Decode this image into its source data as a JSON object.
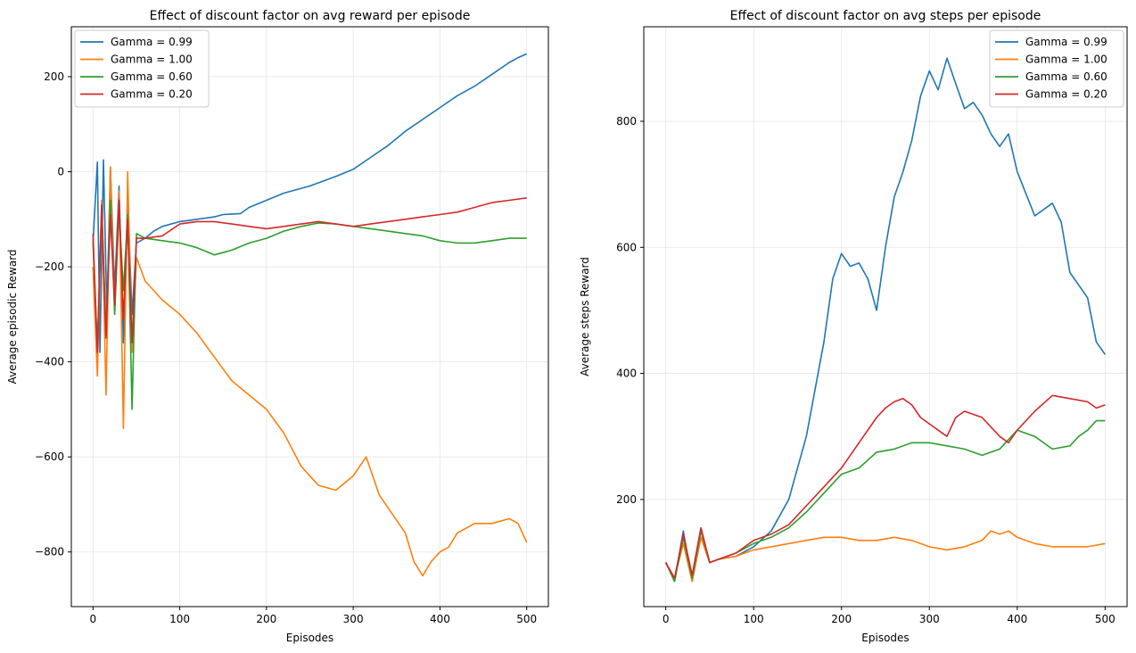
{
  "chart_data": [
    {
      "type": "line",
      "title": "Effect of discount factor on avg reward per episode",
      "xlabel": "Episodes",
      "ylabel": "Average episodic Reward",
      "xlim": [
        -25,
        525
      ],
      "ylim": [
        -915,
        305
      ],
      "xticks": [
        0,
        100,
        200,
        300,
        400,
        500
      ],
      "yticks": [
        -800,
        -600,
        -400,
        -200,
        0,
        200
      ],
      "grid": true,
      "legend": "upper left",
      "series": [
        {
          "name": "Gamma = 0.99",
          "color": "#1f77b4",
          "x": [
            0,
            5,
            8,
            12,
            16,
            20,
            25,
            30,
            35,
            40,
            45,
            50,
            60,
            70,
            80,
            100,
            120,
            140,
            150,
            170,
            180,
            200,
            220,
            250,
            280,
            300,
            320,
            340,
            350,
            360,
            380,
            400,
            420,
            440,
            460,
            480,
            490,
            500
          ],
          "y": [
            -150,
            20,
            -380,
            25,
            -300,
            10,
            -250,
            -30,
            -360,
            -60,
            -300,
            -150,
            -140,
            -125,
            -115,
            -105,
            -100,
            -95,
            -90,
            -88,
            -75,
            -60,
            -45,
            -30,
            -10,
            5,
            30,
            55,
            70,
            85,
            110,
            135,
            160,
            180,
            205,
            230,
            240,
            248
          ]
        },
        {
          "name": "Gamma = 1.00",
          "color": "#ff7f0e",
          "x": [
            0,
            5,
            10,
            15,
            20,
            25,
            30,
            35,
            40,
            45,
            50,
            60,
            80,
            100,
            120,
            140,
            160,
            180,
            200,
            220,
            240,
            260,
            280,
            300,
            315,
            330,
            345,
            360,
            370,
            380,
            390,
            400,
            410,
            420,
            440,
            460,
            480,
            490,
            500
          ],
          "y": [
            -200,
            -430,
            -60,
            -470,
            10,
            -300,
            -40,
            -540,
            0,
            -380,
            -180,
            -230,
            -270,
            -300,
            -340,
            -390,
            -440,
            -470,
            -500,
            -550,
            -620,
            -660,
            -670,
            -640,
            -600,
            -680,
            -720,
            -760,
            -820,
            -850,
            -820,
            -800,
            -790,
            -760,
            -740,
            -740,
            -730,
            -740,
            -780
          ]
        },
        {
          "name": "Gamma = 0.60",
          "color": "#2ca02c",
          "x": [
            0,
            5,
            10,
            15,
            20,
            25,
            30,
            35,
            40,
            45,
            50,
            60,
            80,
            100,
            120,
            140,
            160,
            180,
            200,
            220,
            240,
            260,
            280,
            300,
            320,
            340,
            360,
            380,
            400,
            420,
            440,
            460,
            480,
            500
          ],
          "y": [
            -150,
            -370,
            -70,
            -340,
            -60,
            -300,
            -80,
            -250,
            -90,
            -500,
            -130,
            -140,
            -145,
            -150,
            -160,
            -175,
            -165,
            -150,
            -140,
            -125,
            -115,
            -108,
            -110,
            -115,
            -120,
            -125,
            -130,
            -135,
            -145,
            -150,
            -150,
            -145,
            -140,
            -140
          ]
        },
        {
          "name": "Gamma = 0.20",
          "color": "#d62728",
          "x": [
            0,
            5,
            10,
            15,
            20,
            25,
            30,
            35,
            40,
            45,
            50,
            60,
            80,
            100,
            120,
            140,
            160,
            180,
            200,
            220,
            240,
            260,
            280,
            300,
            320,
            340,
            360,
            380,
            400,
            420,
            440,
            460,
            480,
            500
          ],
          "y": [
            -130,
            -380,
            -70,
            -350,
            -90,
            -280,
            -60,
            -310,
            -100,
            -360,
            -140,
            -140,
            -135,
            -110,
            -105,
            -105,
            -110,
            -115,
            -120,
            -115,
            -110,
            -105,
            -110,
            -115,
            -110,
            -105,
            -100,
            -95,
            -90,
            -85,
            -75,
            -65,
            -60,
            -55
          ]
        }
      ]
    },
    {
      "type": "line",
      "title": "Effect of discount factor on avg steps per episode",
      "xlabel": "Episodes",
      "ylabel": "Average steps Reward",
      "xlim": [
        -25,
        525
      ],
      "ylim": [
        30,
        950
      ],
      "xticks": [
        0,
        100,
        200,
        300,
        400,
        500
      ],
      "yticks": [
        200,
        400,
        600,
        800
      ],
      "grid": true,
      "legend": "upper right",
      "series": [
        {
          "name": "Gamma = 0.99",
          "color": "#1f77b4",
          "x": [
            0,
            10,
            20,
            30,
            40,
            50,
            60,
            80,
            100,
            120,
            140,
            160,
            180,
            190,
            200,
            210,
            220,
            230,
            240,
            250,
            260,
            270,
            280,
            290,
            300,
            310,
            320,
            330,
            340,
            350,
            360,
            370,
            380,
            390,
            400,
            420,
            440,
            450,
            460,
            480,
            490,
            500
          ],
          "y": [
            100,
            70,
            150,
            70,
            140,
            100,
            105,
            110,
            125,
            150,
            200,
            300,
            450,
            550,
            590,
            570,
            575,
            550,
            500,
            600,
            680,
            720,
            770,
            840,
            880,
            850,
            900,
            860,
            820,
            830,
            810,
            780,
            760,
            780,
            720,
            650,
            670,
            640,
            560,
            520,
            450,
            430
          ]
        },
        {
          "name": "Gamma = 1.00",
          "color": "#ff7f0e",
          "x": [
            0,
            10,
            20,
            30,
            40,
            50,
            60,
            80,
            100,
            120,
            140,
            160,
            180,
            200,
            220,
            240,
            260,
            280,
            300,
            320,
            340,
            360,
            370,
            380,
            390,
            400,
            420,
            440,
            460,
            480,
            500
          ],
          "y": [
            100,
            75,
            130,
            70,
            140,
            100,
            105,
            110,
            120,
            125,
            130,
            135,
            140,
            140,
            135,
            135,
            140,
            135,
            125,
            120,
            125,
            135,
            150,
            145,
            150,
            140,
            130,
            125,
            125,
            125,
            130
          ]
        },
        {
          "name": "Gamma = 0.60",
          "color": "#2ca02c",
          "x": [
            0,
            10,
            20,
            30,
            40,
            50,
            60,
            80,
            100,
            120,
            140,
            160,
            180,
            200,
            220,
            240,
            260,
            280,
            300,
            320,
            340,
            360,
            380,
            400,
            420,
            440,
            460,
            470,
            480,
            490,
            500
          ],
          "y": [
            100,
            70,
            140,
            75,
            150,
            100,
            105,
            115,
            130,
            140,
            155,
            180,
            210,
            240,
            250,
            275,
            280,
            290,
            290,
            285,
            280,
            270,
            280,
            310,
            300,
            280,
            285,
            300,
            310,
            325,
            325
          ]
        },
        {
          "name": "Gamma = 0.20",
          "color": "#d62728",
          "x": [
            0,
            10,
            20,
            30,
            40,
            50,
            60,
            80,
            100,
            120,
            140,
            160,
            180,
            200,
            220,
            240,
            250,
            260,
            270,
            280,
            290,
            300,
            310,
            320,
            330,
            340,
            360,
            380,
            390,
            400,
            420,
            440,
            460,
            480,
            490,
            500
          ],
          "y": [
            100,
            75,
            145,
            80,
            155,
            100,
            105,
            115,
            135,
            145,
            160,
            190,
            220,
            250,
            290,
            330,
            345,
            355,
            360,
            350,
            330,
            320,
            310,
            300,
            330,
            340,
            330,
            300,
            290,
            310,
            340,
            365,
            360,
            355,
            345,
            350
          ]
        }
      ]
    }
  ]
}
